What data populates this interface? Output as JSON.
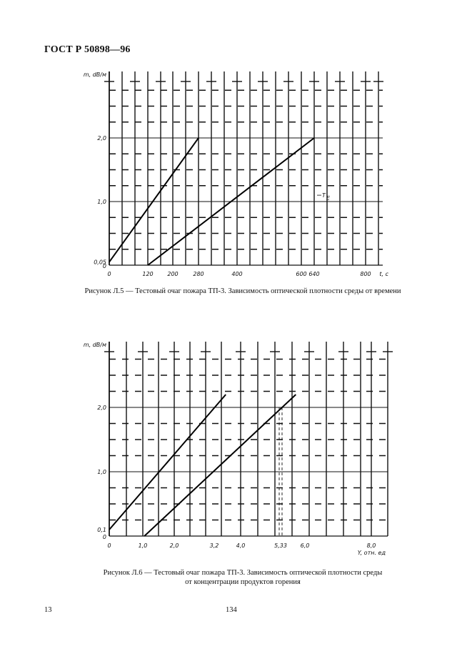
{
  "header": {
    "standard": "ГОСТ Р 50898—96"
  },
  "chart_data": [
    {
      "type": "line",
      "ylabel": "m, dB/м",
      "xlabel": "t, с",
      "xlim": [
        0,
        800
      ],
      "ylim": [
        0,
        3.0
      ],
      "x_ticks": [
        {
          "v": 0,
          "label": "0"
        },
        {
          "v": 120,
          "label": "120"
        },
        {
          "v": 200,
          "label": "200"
        },
        {
          "v": 280,
          "label": "280"
        },
        {
          "v": 400,
          "label": "400"
        },
        {
          "v": 600,
          "label": "600"
        },
        {
          "v": 640,
          "label": "640"
        },
        {
          "v": 800,
          "label": "800"
        }
      ],
      "y_ticks": [
        {
          "v": 0,
          "label": "0"
        },
        {
          "v": 0.05,
          "label": "0,05"
        },
        {
          "v": 1.0,
          "label": "1,0"
        },
        {
          "v": 2.0,
          "label": "2,0"
        }
      ],
      "series": [
        {
          "x": [
            0,
            280
          ],
          "y": [
            0.05,
            2.0
          ]
        },
        {
          "x": [
            120,
            640
          ],
          "y": [
            0,
            2.0
          ]
        }
      ],
      "annotation": {
        "text": "T",
        "sub": "E",
        "x": 660,
        "y": 1.1
      },
      "reference_lines": [
        {
          "orientation": "h",
          "value": 2.0,
          "from": 640,
          "to": 800,
          "style": "dashed"
        }
      ],
      "grid": true,
      "caption": "Рисунок Л.5 — Тестовый очаг пожара ТП-3. Зависимость оптической плотности среды от времени"
    },
    {
      "type": "line",
      "ylabel": "m, dB/м",
      "xlabel": "Y, отн. ед",
      "xlim": [
        0,
        8.5
      ],
      "ylim": [
        0,
        3.0
      ],
      "x_ticks": [
        {
          "v": 0,
          "label": "0"
        },
        {
          "v": 1.0,
          "label": "1,0"
        },
        {
          "v": 2.0,
          "label": "2,0"
        },
        {
          "v": 3.2,
          "label": "3,2"
        },
        {
          "v": 4.0,
          "label": "4,0"
        },
        {
          "v": 5.33,
          "label": "5,33"
        },
        {
          "v": 6.0,
          "label": "6,0"
        },
        {
          "v": 8.0,
          "label": "8,0"
        }
      ],
      "y_ticks": [
        {
          "v": 0,
          "label": "0"
        },
        {
          "v": 0.1,
          "label": "0,1"
        },
        {
          "v": 1.0,
          "label": "1,0"
        },
        {
          "v": 2.0,
          "label": "2,0"
        }
      ],
      "series": [
        {
          "x": [
            0,
            3.55
          ],
          "y": [
            0.1,
            2.2
          ]
        },
        {
          "x": [
            1.05,
            5.75
          ],
          "y": [
            0,
            2.2
          ]
        }
      ],
      "reference_lines": [
        {
          "orientation": "h",
          "value": 2.0,
          "from": 0,
          "to": 5.33,
          "style": "solid"
        },
        {
          "orientation": "v",
          "value": 5.33,
          "from": 0,
          "to": 2.0,
          "style": "dashed"
        }
      ],
      "grid": true,
      "caption_line1": "Рисунок Л.6 — Тестовый очаг пожара ТП-3. Зависимость оптической плотности среды",
      "caption_line2": "от концентрации продуктов горения"
    }
  ],
  "footer": {
    "page_left": "13",
    "page_center": "134"
  }
}
